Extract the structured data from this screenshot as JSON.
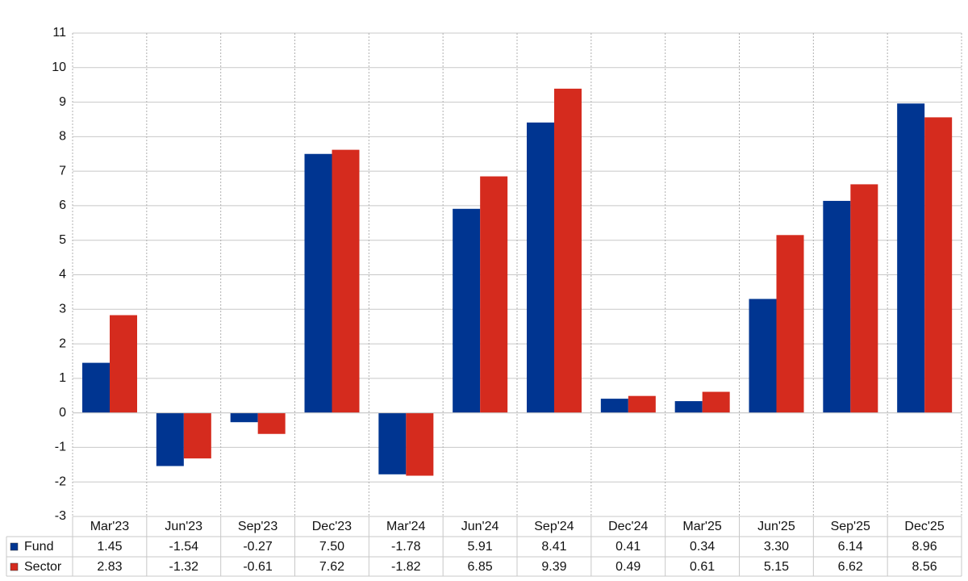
{
  "chart_data": {
    "type": "bar",
    "categories": [
      "Mar'23",
      "Jun'23",
      "Sep'23",
      "Dec'23",
      "Mar'24",
      "Jun'24",
      "Sep'24",
      "Dec'24",
      "Mar'25",
      "Jun'25",
      "Sep'25",
      "Dec'25"
    ],
    "series": [
      {
        "name": "Fund",
        "color": "#003591",
        "values": [
          1.45,
          -1.54,
          -0.27,
          7.5,
          -1.78,
          5.91,
          8.41,
          0.41,
          0.34,
          3.3,
          6.14,
          8.96
        ],
        "value_labels": [
          "1.45",
          "-1.54",
          "-0.27",
          "7.50",
          "-1.78",
          "5.91",
          "8.41",
          "0.41",
          "0.34",
          "3.30",
          "6.14",
          "8.96"
        ]
      },
      {
        "name": "Sector",
        "color": "#d52b1e",
        "values": [
          2.83,
          -1.32,
          -0.61,
          7.62,
          -1.82,
          6.85,
          9.39,
          0.49,
          0.61,
          5.15,
          6.62,
          8.56
        ],
        "value_labels": [
          "2.83",
          "-1.32",
          "-0.61",
          "7.62",
          "-1.82",
          "6.85",
          "9.39",
          "0.49",
          "0.61",
          "5.15",
          "6.62",
          "8.56"
        ]
      }
    ],
    "ylim": [
      -3,
      11
    ],
    "yticks": [
      -3,
      -2,
      -1,
      0,
      1,
      2,
      3,
      4,
      5,
      6,
      7,
      8,
      9,
      10,
      11
    ],
    "grid": true,
    "negative_label_color": "#e00000"
  }
}
